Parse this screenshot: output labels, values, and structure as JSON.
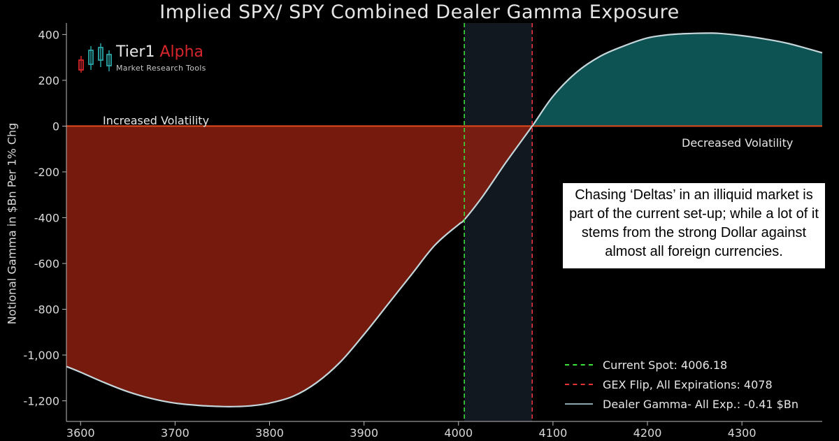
{
  "chart_data": {
    "type": "area",
    "title": "Implied SPX/ SPY Combined Dealer Gamma Exposure",
    "xlabel": "",
    "ylabel": "Notional Gamma in $Bn Per 1% Chg",
    "xlim": [
      3585,
      4385
    ],
    "ylim": [
      -1290,
      450
    ],
    "x_ticks": [
      3600,
      3700,
      3800,
      3900,
      4000,
      4100,
      4200,
      4300
    ],
    "y_ticks": [
      400,
      200,
      0,
      -200,
      -400,
      -600,
      -800,
      -1000,
      -1200
    ],
    "x_tick_labels": [
      "3600",
      "3700",
      "3800",
      "3900",
      "4000",
      "4100",
      "4200",
      "4300"
    ],
    "y_tick_labels": [
      "400",
      "200",
      "0",
      "-200",
      "-400",
      "-600",
      "-800",
      "-1,000",
      "-1,200"
    ],
    "series": [
      {
        "name": "Dealer Gamma- All Exp.: -0.41 $Bn",
        "x": [
          3585,
          3600,
          3625,
          3650,
          3675,
          3700,
          3725,
          3750,
          3765,
          3780,
          3800,
          3825,
          3850,
          3875,
          3900,
          3925,
          3950,
          3975,
          4000,
          4006,
          4025,
          4050,
          4078,
          4100,
          4125,
          4150,
          4175,
          4200,
          4225,
          4250,
          4265,
          4275,
          4300,
          4325,
          4350,
          4385
        ],
        "y": [
          -1050,
          -1075,
          -1120,
          -1160,
          -1190,
          -1210,
          -1220,
          -1225,
          -1225,
          -1222,
          -1210,
          -1180,
          -1120,
          -1030,
          -910,
          -780,
          -650,
          -520,
          -430,
          -410,
          -310,
          -160,
          0,
          130,
          235,
          305,
          350,
          385,
          400,
          405,
          406,
          405,
          395,
          380,
          360,
          320
        ]
      }
    ],
    "vlines": [
      {
        "x": 4006.18,
        "color": "#38e038",
        "style": "dashed",
        "label": "Current Spot: 4006.18"
      },
      {
        "x": 4078,
        "color": "#e8323a",
        "style": "dashed",
        "label": "GEX Flip, All Expirations: 4078"
      }
    ],
    "shaded_band": {
      "x_start": 4006.18,
      "x_end": 4078
    },
    "fill_colors": {
      "negative": "#8b1e10",
      "positive": "#0f5c5c",
      "zero_line": "#e04a1e",
      "curve": "#c5d6da",
      "band": "#121820"
    },
    "annotations": {
      "left_zone": "Increased Volatility",
      "right_zone": "Decreased Volatility"
    },
    "legend": {
      "placement": "bottom-right",
      "items": [
        {
          "label": "Current Spot: 4006.18",
          "color": "#38e038",
          "style": "dashed"
        },
        {
          "label": "GEX Flip, All Expirations: 4078",
          "color": "#e8323a",
          "style": "dashed"
        },
        {
          "label": "Dealer Gamma- All Exp.: -0.41 $Bn",
          "color": "#8fa3b0",
          "style": "solid"
        }
      ]
    },
    "grid": false
  },
  "logo": {
    "name_a": "Tier1",
    "name_b": "Alpha",
    "tagline": "Market Research Tools"
  },
  "callout": {
    "text": "Chasing ‘Deltas’ in an illiquid market is part of the current set-up; while a lot of it stems from the strong Dollar against almost all foreign currencies."
  }
}
